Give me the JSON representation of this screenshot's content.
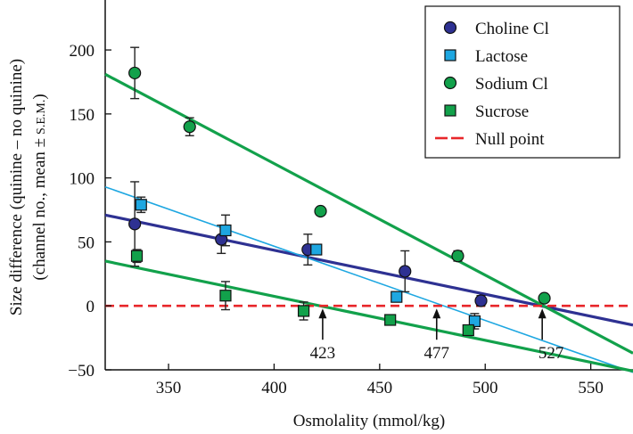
{
  "chart_data": {
    "type": "scatter",
    "xlabel": "Osmolality (mmol/kg)",
    "ylabel_line1": "Size difference (quinine – no quinine)",
    "ylabel_line2_main": "(channel no., mean ±",
    "ylabel_line2_small": "S.E.M.",
    "ylabel_line2_end": ")",
    "xlim": [
      320,
      570
    ],
    "ylim": [
      -50,
      230
    ],
    "x_ticks": [
      350,
      400,
      450,
      500,
      550
    ],
    "y_ticks": [
      -50,
      0,
      50,
      100,
      150,
      200
    ],
    "grid": false,
    "legend_position": "top-right",
    "series": [
      {
        "name": "Choline Cl",
        "marker": "circle",
        "color": "#2e3192",
        "points": [
          {
            "x": 334,
            "y": 64,
            "err": 33
          },
          {
            "x": 375,
            "y": 52,
            "err": 11
          },
          {
            "x": 416,
            "y": 44,
            "err": 12
          },
          {
            "x": 462,
            "y": 27,
            "err": 16
          },
          {
            "x": 498,
            "y": 4,
            "err": 4
          }
        ],
        "fit_line": {
          "x": [
            320,
            570
          ],
          "y": [
            71,
            -15
          ]
        }
      },
      {
        "name": "Lactose",
        "marker": "square",
        "color": "#1ea7e1",
        "points": [
          {
            "x": 337,
            "y": 79,
            "err": 6
          },
          {
            "x": 377,
            "y": 59,
            "err": 12
          },
          {
            "x": 420,
            "y": 44,
            "err": 3
          },
          {
            "x": 458,
            "y": 7,
            "err": 3
          },
          {
            "x": 495,
            "y": -12,
            "err": 6
          }
        ],
        "fit_line": {
          "x": [
            320,
            570
          ],
          "y": [
            93,
            -52
          ]
        }
      },
      {
        "name": "Sodium Cl",
        "marker": "circle",
        "color": "#12a14b",
        "points": [
          {
            "x": 334,
            "y": 182,
            "err": 20
          },
          {
            "x": 360,
            "y": 140,
            "err": 7
          },
          {
            "x": 422,
            "y": 74,
            "err": 0
          },
          {
            "x": 487,
            "y": 39,
            "err": 4
          },
          {
            "x": 528,
            "y": 6,
            "err": 2
          }
        ],
        "fit_line": {
          "x": [
            320,
            570
          ],
          "y": [
            181,
            -37
          ]
        }
      },
      {
        "name": "Sucrose",
        "marker": "square",
        "color": "#12a14b",
        "points": [
          {
            "x": 335,
            "y": 39,
            "err": 5
          },
          {
            "x": 377,
            "y": 8,
            "err": 11
          },
          {
            "x": 414,
            "y": -4,
            "err": 7
          },
          {
            "x": 455,
            "y": -11,
            "err": 0
          },
          {
            "x": 492,
            "y": -19,
            "err": 3
          }
        ],
        "fit_line": {
          "x": [
            320,
            570
          ],
          "y": [
            35,
            -51
          ]
        }
      }
    ],
    "null_line": {
      "name": "Null point",
      "y": 0,
      "color": "#e8262a",
      "style": "dashed"
    },
    "annotations": [
      {
        "x": 423,
        "label": "423"
      },
      {
        "x": 477,
        "label": "477"
      },
      {
        "x": 527,
        "label": "527"
      }
    ]
  }
}
